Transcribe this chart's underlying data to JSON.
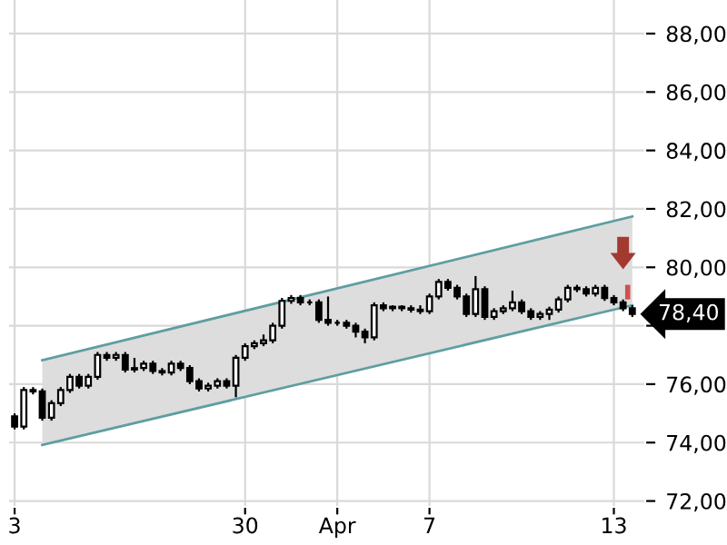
{
  "chart_data": {
    "type": "candlestick",
    "categories": [
      "3",
      null,
      null,
      null,
      null,
      null,
      null,
      null,
      null,
      null,
      null,
      null,
      null,
      null,
      null,
      null,
      null,
      null,
      null,
      null,
      null,
      null,
      null,
      null,
      null,
      "30",
      null,
      null,
      null,
      null,
      null,
      null,
      null,
      null,
      null,
      "Apr",
      null,
      null,
      null,
      null,
      null,
      null,
      null,
      null,
      null,
      "7",
      null,
      null,
      null,
      null,
      null,
      null,
      null,
      null,
      null,
      null,
      null,
      null,
      null,
      null,
      null,
      null,
      null,
      null,
      null,
      "13",
      null,
      null
    ],
    "ohlc": [
      [
        74.9,
        75.0,
        74.45,
        74.55
      ],
      [
        74.55,
        75.9,
        74.45,
        75.8
      ],
      [
        75.8,
        75.9,
        75.65,
        75.75
      ],
      [
        75.75,
        75.85,
        74.75,
        74.85
      ],
      [
        74.85,
        75.45,
        74.75,
        75.35
      ],
      [
        75.35,
        75.9,
        75.25,
        75.8
      ],
      [
        75.8,
        76.35,
        75.7,
        76.25
      ],
      [
        76.25,
        76.35,
        75.85,
        75.95
      ],
      [
        75.95,
        76.35,
        75.85,
        76.25
      ],
      [
        76.25,
        77.1,
        76.15,
        77.0
      ],
      [
        77.0,
        77.1,
        76.8,
        76.9
      ],
      [
        76.9,
        77.1,
        76.8,
        77.0
      ],
      [
        77.0,
        77.1,
        76.4,
        76.5
      ],
      [
        76.5,
        76.9,
        76.4,
        76.55
      ],
      [
        76.55,
        76.8,
        76.45,
        76.7
      ],
      [
        76.7,
        76.8,
        76.35,
        76.45
      ],
      [
        76.45,
        76.55,
        76.3,
        76.4
      ],
      [
        76.4,
        76.8,
        76.3,
        76.7
      ],
      [
        76.7,
        76.8,
        76.45,
        76.55
      ],
      [
        76.55,
        76.65,
        76.0,
        76.1
      ],
      [
        76.1,
        76.2,
        75.75,
        75.85
      ],
      [
        75.85,
        76.05,
        75.75,
        75.95
      ],
      [
        75.95,
        76.2,
        75.85,
        76.1
      ],
      [
        76.1,
        76.2,
        75.85,
        75.95
      ],
      [
        75.95,
        77.0,
        75.55,
        76.9
      ],
      [
        76.9,
        77.4,
        76.8,
        77.3
      ],
      [
        77.3,
        77.5,
        77.2,
        77.4
      ],
      [
        77.4,
        77.7,
        77.3,
        77.5
      ],
      [
        77.5,
        78.1,
        77.4,
        78.0
      ],
      [
        78.0,
        78.95,
        77.9,
        78.85
      ],
      [
        78.85,
        79.05,
        78.75,
        78.95
      ],
      [
        78.95,
        79.05,
        78.7,
        78.8
      ],
      [
        78.8,
        78.9,
        78.7,
        78.8
      ],
      [
        78.8,
        78.9,
        78.1,
        78.2
      ],
      [
        78.2,
        79.0,
        78.0,
        78.1
      ],
      [
        78.1,
        78.2,
        78.0,
        78.1
      ],
      [
        78.1,
        78.2,
        77.9,
        78.0
      ],
      [
        78.0,
        78.1,
        77.6,
        77.8
      ],
      [
        77.8,
        77.9,
        77.4,
        77.6
      ],
      [
        77.6,
        78.8,
        77.5,
        78.7
      ],
      [
        78.7,
        78.8,
        78.5,
        78.6
      ],
      [
        78.6,
        78.7,
        78.5,
        78.65
      ],
      [
        78.65,
        78.7,
        78.5,
        78.6
      ],
      [
        78.6,
        78.7,
        78.45,
        78.55
      ],
      [
        78.55,
        78.7,
        78.4,
        78.5
      ],
      [
        78.5,
        79.1,
        78.4,
        79.0
      ],
      [
        79.0,
        79.6,
        78.9,
        79.5
      ],
      [
        79.5,
        79.6,
        79.2,
        79.3
      ],
      [
        79.3,
        79.4,
        78.9,
        79.0
      ],
      [
        79.0,
        79.1,
        78.3,
        78.4
      ],
      [
        78.4,
        79.7,
        78.3,
        79.25
      ],
      [
        79.25,
        79.35,
        78.2,
        78.3
      ],
      [
        78.3,
        78.6,
        78.2,
        78.5
      ],
      [
        78.5,
        78.7,
        78.4,
        78.6
      ],
      [
        78.6,
        79.2,
        78.5,
        78.8
      ],
      [
        78.8,
        78.9,
        78.4,
        78.5
      ],
      [
        78.5,
        78.6,
        78.2,
        78.3
      ],
      [
        78.3,
        78.5,
        78.2,
        78.4
      ],
      [
        78.4,
        78.65,
        78.2,
        78.55
      ],
      [
        78.55,
        79.0,
        78.45,
        78.9
      ],
      [
        78.9,
        79.4,
        78.8,
        79.3
      ],
      [
        79.3,
        79.4,
        79.15,
        79.25
      ],
      [
        79.25,
        79.35,
        79.0,
        79.1
      ],
      [
        79.1,
        79.4,
        79.0,
        79.3
      ],
      [
        79.3,
        79.4,
        78.85,
        78.95
      ],
      [
        78.95,
        79.05,
        78.7,
        78.8
      ],
      [
        78.8,
        78.9,
        78.5,
        78.6
      ],
      [
        78.6,
        78.7,
        78.3,
        78.4
      ]
    ],
    "series": [
      {
        "type": "line",
        "values": [
          null,
          null,
          null,
          76.82,
          null,
          null,
          null,
          null,
          null,
          null,
          null,
          null,
          null,
          null,
          null,
          null,
          null,
          null,
          null,
          null,
          null,
          null,
          null,
          null,
          null,
          null,
          null,
          null,
          null,
          null,
          null,
          null,
          null,
          null,
          null,
          null,
          null,
          null,
          null,
          null,
          null,
          null,
          null,
          null,
          null,
          null,
          null,
          null,
          null,
          null,
          null,
          null,
          null,
          null,
          null,
          null,
          null,
          null,
          null,
          null,
          null,
          null,
          null,
          null,
          null,
          null,
          null,
          81.74
        ],
        "color": "#5f9ea0"
      },
      {
        "type": "line",
        "values": [
          null,
          null,
          null,
          73.92,
          null,
          null,
          null,
          null,
          null,
          null,
          null,
          null,
          null,
          null,
          null,
          null,
          null,
          null,
          null,
          null,
          null,
          null,
          null,
          null,
          null,
          null,
          null,
          null,
          null,
          null,
          null,
          null,
          null,
          null,
          null,
          null,
          null,
          null,
          null,
          null,
          null,
          null,
          null,
          null,
          null,
          null,
          null,
          null,
          null,
          null,
          null,
          null,
          null,
          null,
          null,
          null,
          null,
          null,
          null,
          null,
          null,
          null,
          null,
          null,
          null,
          null,
          null,
          78.7
        ],
        "color": "#5f9ea0"
      }
    ],
    "annotations": [
      "78,40"
    ],
    "ylim": [
      71.8,
      89.15
    ],
    "yticks": [
      {
        "value": 72,
        "label": "72,00"
      },
      {
        "value": 74,
        "label": "74,00"
      },
      {
        "value": 76,
        "label": "76,00"
      },
      {
        "value": 78,
        "label": null
      },
      {
        "value": 80,
        "label": "80,00"
      },
      {
        "value": 82,
        "label": "82,00"
      },
      {
        "value": 84,
        "label": "84,00"
      },
      {
        "value": 86,
        "label": "86,00"
      },
      {
        "value": 88,
        "label": "88,00"
      }
    ],
    "grid": true
  }
}
